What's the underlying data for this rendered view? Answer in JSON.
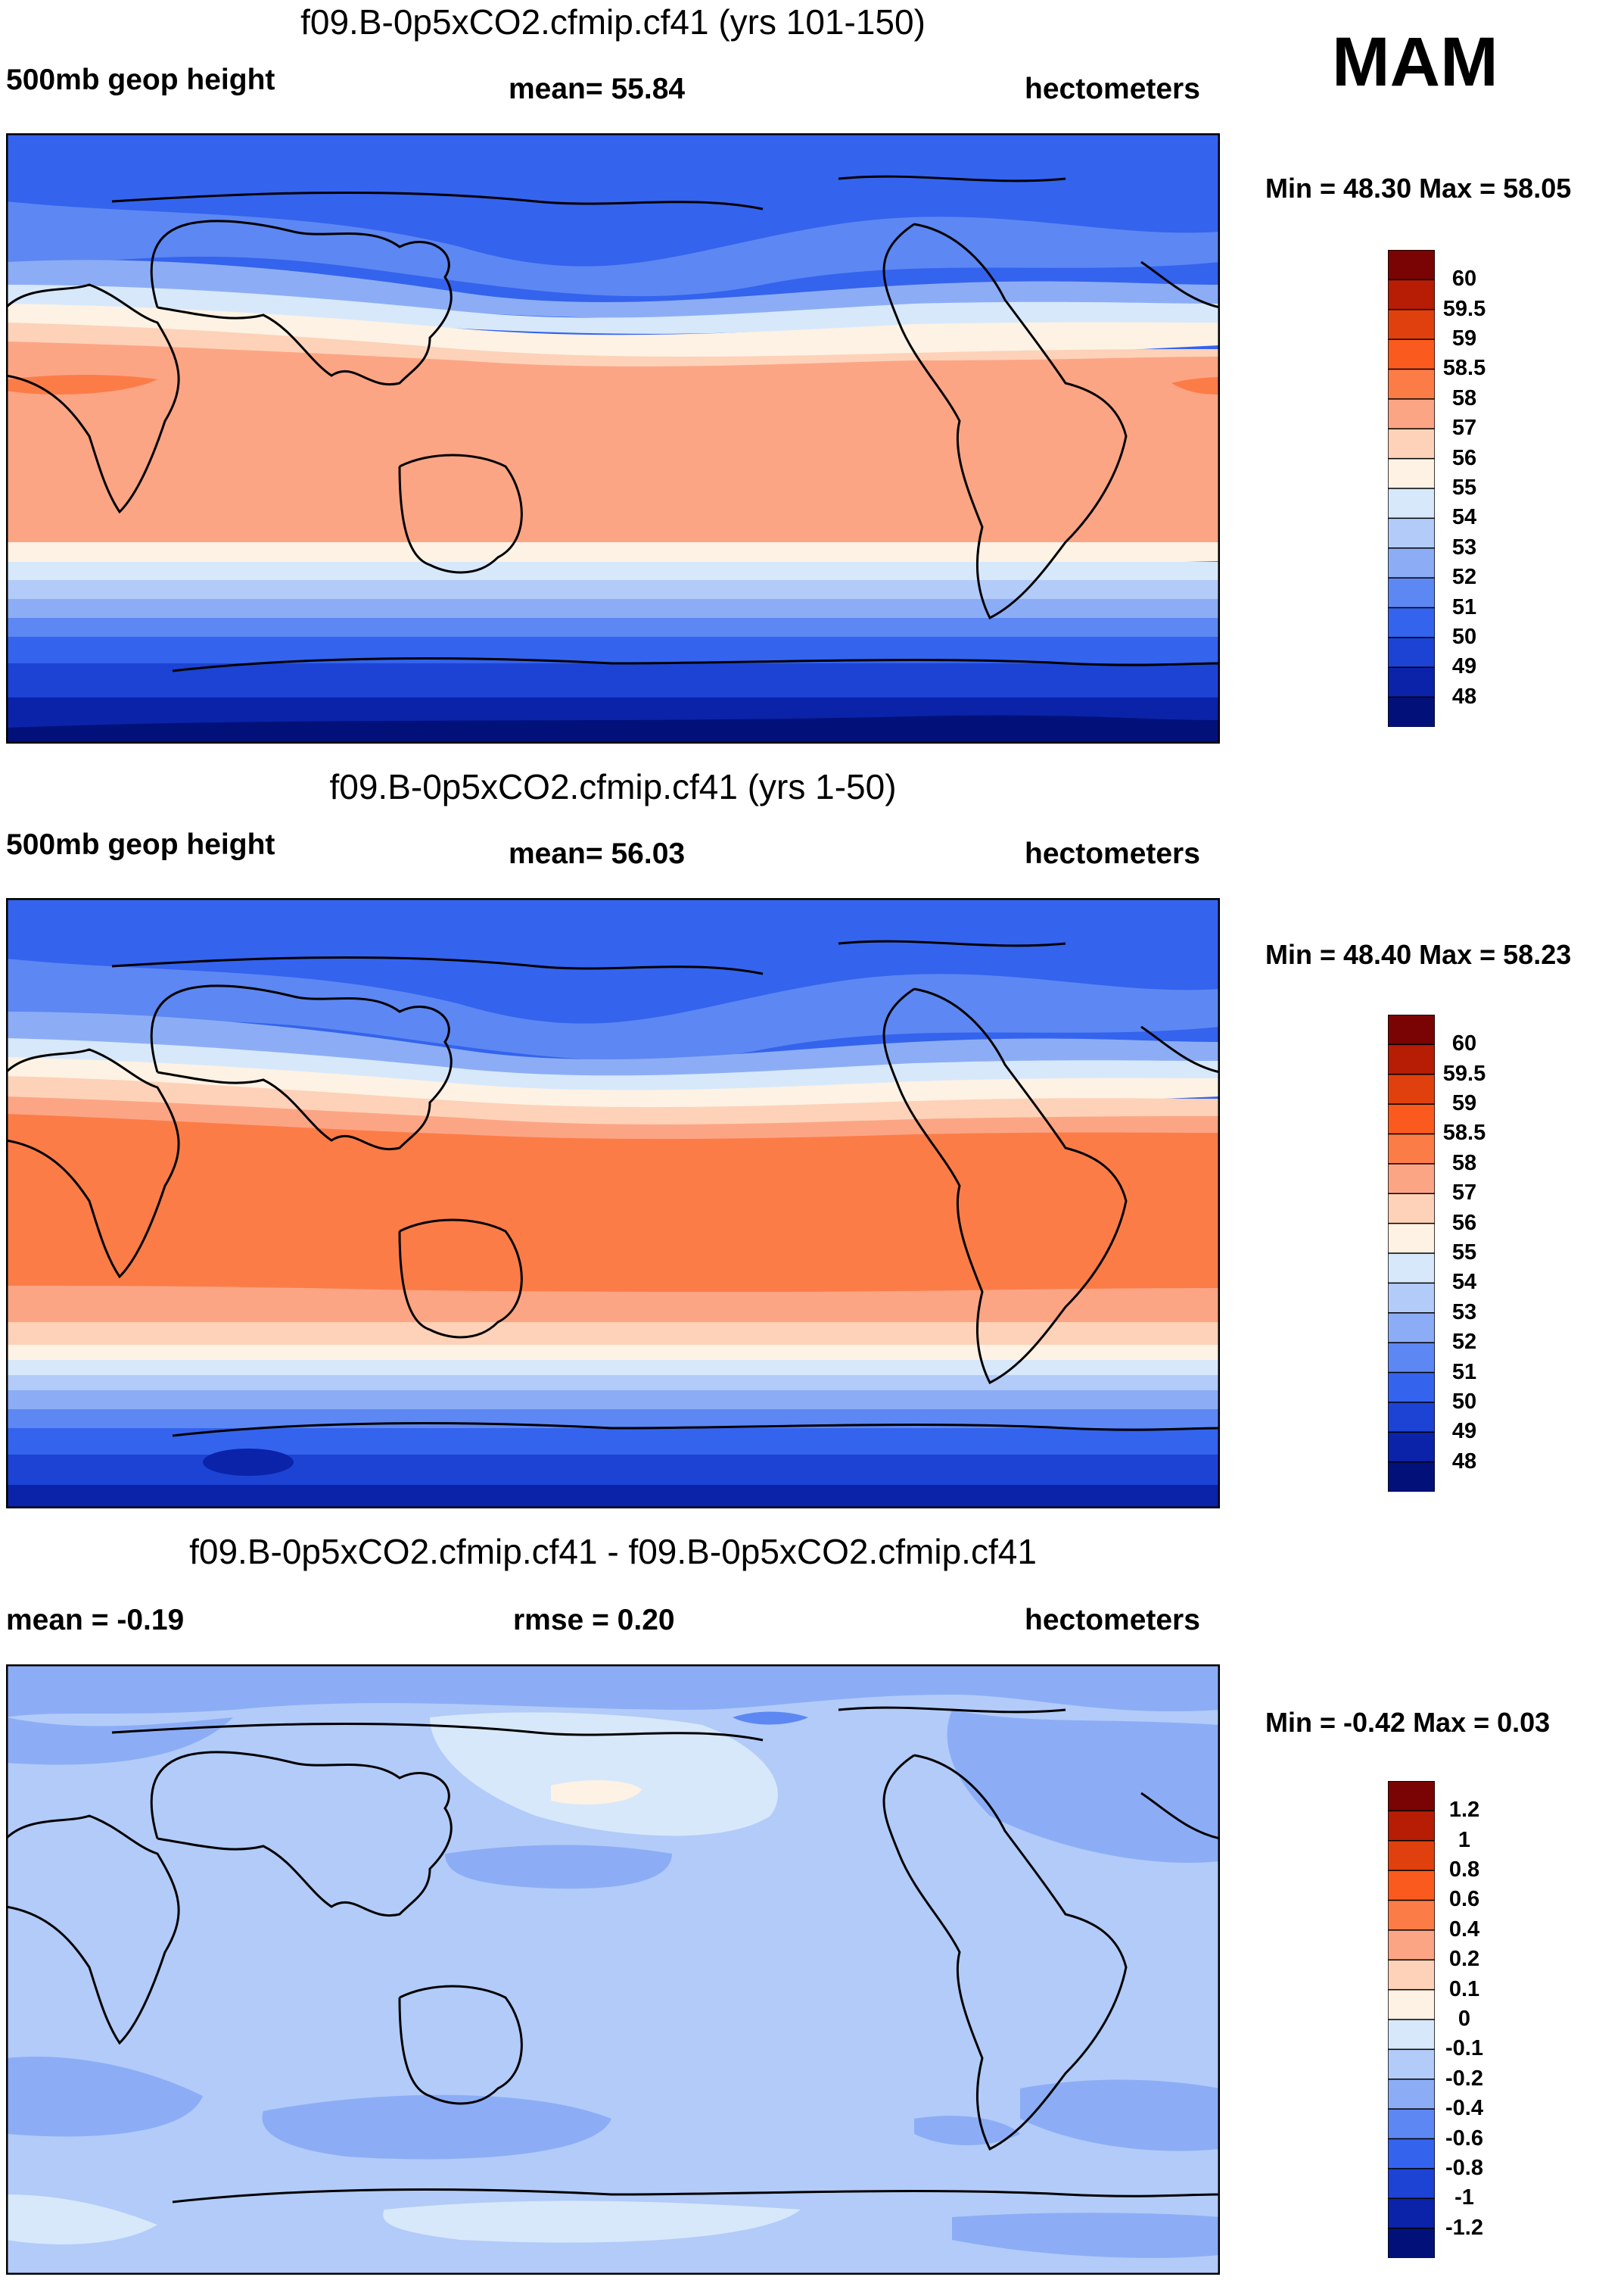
{
  "season": "MAM",
  "panels": [
    {
      "title": "f09.B-0p5xCO2.cfmip.cf41 (yrs 101-150)",
      "left_label": "500mb geop height",
      "center_label": "mean=  55.84",
      "right_label": "hectometers",
      "minmax": "Min =  48.30 Max =  58.05",
      "colorbar_labels": [
        "60",
        "59.5",
        "59",
        "58.5",
        "58",
        "57",
        "56",
        "55",
        "54",
        "53",
        "52",
        "51",
        "50",
        "49",
        "48"
      ]
    },
    {
      "title": "f09.B-0p5xCO2.cfmip.cf41 (yrs 1-50)",
      "left_label": "500mb geop height",
      "center_label": "mean=  56.03",
      "right_label": "hectometers",
      "minmax": "Min =  48.40 Max =  58.23",
      "colorbar_labels": [
        "60",
        "59.5",
        "59",
        "58.5",
        "58",
        "57",
        "56",
        "55",
        "54",
        "53",
        "52",
        "51",
        "50",
        "49",
        "48"
      ]
    },
    {
      "title": "f09.B-0p5xCO2.cfmip.cf41 - f09.B-0p5xCO2.cfmip.cf41",
      "left_label": "mean =  -0.19",
      "center_label": "rmse =   0.20",
      "right_label": "hectometers",
      "minmax": "Min =  -0.42 Max =   0.03",
      "colorbar_labels": [
        "1.2",
        "1",
        "0.8",
        "0.6",
        "0.4",
        "0.2",
        "0.1",
        "0",
        "-0.1",
        "-0.2",
        "-0.4",
        "-0.6",
        "-0.8",
        "-1",
        "-1.2"
      ]
    }
  ],
  "palette_abs": [
    "#7a0403",
    "#b71c05",
    "#e0400d",
    "#fa5a1e",
    "#fc7c48",
    "#fca585",
    "#fdd2b8",
    "#fdf2e4",
    "#d7e8fb",
    "#b2cbf9",
    "#8cadf6",
    "#5d87f2",
    "#3463ee",
    "#1c43d4",
    "#0a23a8",
    "#02117a"
  ],
  "palette_diff": [
    "#7a0403",
    "#b71c05",
    "#e0400d",
    "#fa5a1e",
    "#fc7c48",
    "#fca585",
    "#fdd2b8",
    "#fdf2e4",
    "#d7e8fb",
    "#b2cbf9",
    "#8cadf6",
    "#5d87f2",
    "#3463ee",
    "#1c43d4",
    "#0a23a8",
    "#02117a"
  ]
}
